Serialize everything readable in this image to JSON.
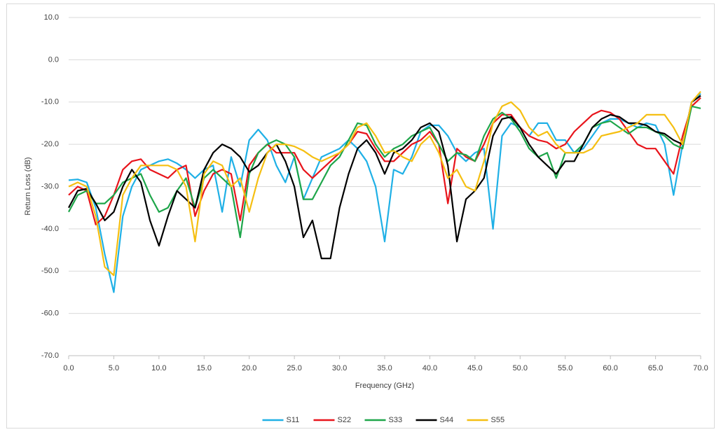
{
  "chart_data": {
    "type": "line",
    "x_label": "Frequency (GHz)",
    "y_label": "Return Loss (dB)",
    "x": [
      0,
      1,
      2,
      3,
      4,
      5,
      6,
      7,
      8,
      9,
      10,
      11,
      12,
      13,
      14,
      15,
      16,
      17,
      18,
      19,
      20,
      21,
      22,
      23,
      24,
      25,
      26,
      27,
      28,
      29,
      30,
      31,
      32,
      33,
      34,
      35,
      36,
      37,
      38,
      39,
      40,
      41,
      42,
      43,
      44,
      45,
      46,
      47,
      48,
      49,
      50,
      51,
      52,
      53,
      54,
      55,
      56,
      57,
      58,
      59,
      60,
      61,
      62,
      63,
      64,
      65,
      66,
      67,
      68,
      69,
      70
    ],
    "series": [
      {
        "name": "S11",
        "color": "#1fb0e6",
        "values": [
          -28.5,
          -28.3,
          -29,
          -35,
          -46,
          -55,
          -37,
          -30,
          -26,
          -25,
          -24,
          -23.5,
          -24.5,
          -26,
          -28,
          -26,
          -25,
          -36,
          -23,
          -30,
          -19,
          -16.5,
          -19,
          -25,
          -29,
          -23,
          -33,
          -28,
          -23,
          -22,
          -21,
          -19,
          -21,
          -24,
          -30,
          -43,
          -26,
          -27,
          -23,
          -17,
          -15.5,
          -15.5,
          -18,
          -22,
          -24,
          -22,
          -21,
          -40,
          -18,
          -15,
          -16,
          -18,
          -15,
          -15,
          -19,
          -19,
          -22,
          -21,
          -18,
          -15,
          -14,
          -14,
          -15,
          -16,
          -15,
          -15.5,
          -20,
          -32,
          -20,
          -10,
          -8
        ]
      },
      {
        "name": "S22",
        "color": "#e8141b",
        "values": [
          -32,
          -30,
          -31,
          -39,
          -37,
          -32,
          -26,
          -24,
          -23.5,
          -26,
          -27,
          -28,
          -26,
          -25,
          -37,
          -31,
          -27,
          -26,
          -27,
          -38,
          -25,
          -22,
          -20,
          -22,
          -22,
          -22,
          -26,
          -28,
          -26,
          -24,
          -22,
          -20,
          -17,
          -17.5,
          -21,
          -24,
          -24,
          -22,
          -20,
          -19,
          -17,
          -20,
          -34,
          -21,
          -23,
          -24,
          -20,
          -15,
          -13,
          -13,
          -16,
          -18,
          -19,
          -19.5,
          -21,
          -20,
          -17,
          -15,
          -13,
          -12,
          -12.5,
          -14,
          -17,
          -20,
          -21,
          -21,
          -24,
          -27,
          -18,
          -11,
          -9
        ]
      },
      {
        "name": "S33",
        "color": "#1ea64a",
        "values": [
          -36,
          -32,
          -31,
          -34,
          -34,
          -32,
          -29,
          -28,
          -27,
          -32,
          -36,
          -35,
          -31,
          -28,
          -35,
          -28,
          -26,
          -28,
          -30,
          -42,
          -27,
          -22,
          -20,
          -19,
          -20,
          -23,
          -33,
          -33,
          -29,
          -25,
          -23,
          -19,
          -15,
          -15.5,
          -20,
          -23,
          -21,
          -20,
          -18,
          -17,
          -16,
          -20,
          -24,
          -22,
          -22.5,
          -24,
          -18,
          -14,
          -12.5,
          -14,
          -17,
          -21,
          -23,
          -22,
          -28,
          -22,
          -22,
          -20,
          -16,
          -15,
          -14.5,
          -16,
          -17.5,
          -16,
          -16,
          -17,
          -18,
          -20,
          -21,
          -11,
          -11.5
        ]
      },
      {
        "name": "S44",
        "color": "#000000",
        "values": [
          -35,
          -31,
          -30.5,
          -34,
          -38,
          -36,
          -30,
          -26,
          -29,
          -38,
          -44,
          -37,
          -31,
          -33,
          -35,
          -26,
          -22,
          -20,
          -21,
          -23,
          -26.5,
          -25,
          -22,
          -20,
          -24,
          -30,
          -42,
          -38,
          -47,
          -47,
          -35,
          -27,
          -21,
          -19,
          -22,
          -27,
          -22,
          -21,
          -19,
          -16,
          -15,
          -17,
          -25,
          -43,
          -33,
          -31,
          -28,
          -18,
          -14,
          -13.5,
          -16,
          -20,
          -23,
          -25,
          -27,
          -24,
          -24,
          -20,
          -16,
          -14,
          -13,
          -13.5,
          -15,
          -15,
          -15.5,
          -17,
          -17.5,
          -19,
          -20,
          -10,
          -8.5
        ]
      },
      {
        "name": "S55",
        "color": "#f5bf12",
        "values": [
          -30,
          -29,
          -30,
          -37,
          -49,
          -51,
          -32,
          -28,
          -25,
          -25,
          -25,
          -25,
          -26,
          -30,
          -43,
          -27,
          -24,
          -25,
          -30,
          -28,
          -36,
          -28,
          -22,
          -20,
          -20,
          -20.5,
          -21.5,
          -23,
          -24,
          -23,
          -22,
          -20,
          -16,
          -15,
          -18,
          -22,
          -21.5,
          -23,
          -24,
          -20,
          -18,
          -22,
          -28,
          -26,
          -30,
          -31,
          -24,
          -15,
          -11,
          -10,
          -12,
          -16,
          -18,
          -17,
          -20,
          -22,
          -22,
          -22,
          -21,
          -18,
          -17.5,
          -17,
          -16,
          -15,
          -13,
          -13,
          -13,
          -16,
          -20,
          -10,
          -7.5
        ]
      }
    ],
    "xlim": [
      0,
      70
    ],
    "xticks": [
      {
        "value": 0,
        "label": "0.0"
      },
      {
        "value": 5,
        "label": "5.0"
      },
      {
        "value": 10,
        "label": "10.0"
      },
      {
        "value": 15,
        "label": "15.0"
      },
      {
        "value": 20,
        "label": "20.0"
      },
      {
        "value": 25,
        "label": "25.0"
      },
      {
        "value": 30,
        "label": "30.0"
      },
      {
        "value": 35,
        "label": "35.0"
      },
      {
        "value": 40,
        "label": "40.0"
      },
      {
        "value": 45,
        "label": "45.0"
      },
      {
        "value": 50,
        "label": "50.0"
      },
      {
        "value": 55,
        "label": "55.0"
      },
      {
        "value": 60,
        "label": "60.0"
      },
      {
        "value": 65,
        "label": "65.0"
      },
      {
        "value": 70,
        "label": "70.0"
      }
    ],
    "ylim": [
      -70,
      10
    ],
    "yticks": [
      {
        "value": 10,
        "label": "10.0"
      },
      {
        "value": 0,
        "label": "0.0"
      },
      {
        "value": -10,
        "label": "-10.0"
      },
      {
        "value": -20,
        "label": "-20.0"
      },
      {
        "value": -30,
        "label": "-30.0"
      },
      {
        "value": -40,
        "label": "-40.0"
      },
      {
        "value": -50,
        "label": "-50.0"
      },
      {
        "value": -60,
        "label": "-60.0"
      },
      {
        "value": -70,
        "label": "-70.0"
      }
    ],
    "grid": true,
    "legend": "bottom"
  }
}
